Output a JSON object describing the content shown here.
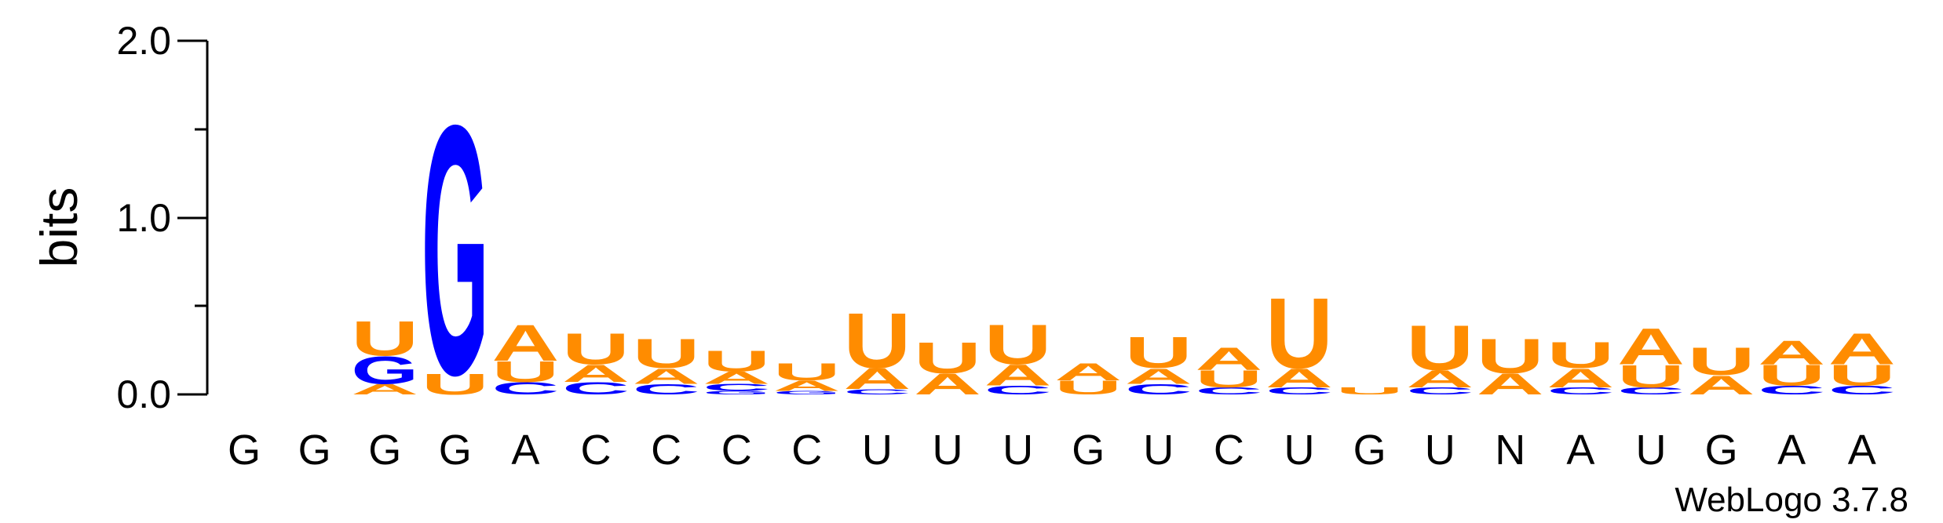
{
  "chart_data": {
    "type": "sequence-logo",
    "title": "",
    "ylabel": "bits",
    "ylim": [
      0,
      2.0
    ],
    "yticks": [
      "0.0",
      "1.0",
      "2.0"
    ],
    "colors": {
      "A": "#ff8c00",
      "U": "#ff8c00",
      "G": "#0000ff",
      "C": "#0000ff"
    },
    "positions": [
      {
        "label": "G",
        "stack": []
      },
      {
        "label": "G",
        "stack": []
      },
      {
        "label": "G",
        "stack": [
          [
            "A",
            0.06
          ],
          [
            "G",
            0.16
          ],
          [
            "U",
            0.2
          ]
        ]
      },
      {
        "label": "G",
        "stack": [
          [
            "U",
            0.12
          ],
          [
            "G",
            1.45
          ]
        ]
      },
      {
        "label": "A",
        "stack": [
          [
            "C",
            0.07
          ],
          [
            "U",
            0.12
          ],
          [
            "A",
            0.21
          ]
        ]
      },
      {
        "label": "C",
        "stack": [
          [
            "C",
            0.07
          ],
          [
            "A",
            0.1
          ],
          [
            "U",
            0.18
          ]
        ]
      },
      {
        "label": "C",
        "stack": [
          [
            "C",
            0.06
          ],
          [
            "A",
            0.09
          ],
          [
            "U",
            0.17
          ]
        ]
      },
      {
        "label": "C",
        "stack": [
          [
            "G",
            0.02
          ],
          [
            "C",
            0.04
          ],
          [
            "A",
            0.07
          ],
          [
            "U",
            0.12
          ]
        ]
      },
      {
        "label": "C",
        "stack": [
          [
            "G",
            0.02
          ],
          [
            "A",
            0.06
          ],
          [
            "U",
            0.1
          ]
        ]
      },
      {
        "label": "U",
        "stack": [
          [
            "C",
            0.03
          ],
          [
            "A",
            0.12
          ],
          [
            "U",
            0.32
          ]
        ]
      },
      {
        "label": "U",
        "stack": [
          [
            "A",
            0.12
          ],
          [
            "U",
            0.18
          ]
        ]
      },
      {
        "label": "U",
        "stack": [
          [
            "C",
            0.05
          ],
          [
            "A",
            0.12
          ],
          [
            "U",
            0.23
          ]
        ]
      },
      {
        "label": "G",
        "stack": [
          [
            "U",
            0.08
          ],
          [
            "A",
            0.1
          ]
        ]
      },
      {
        "label": "U",
        "stack": [
          [
            "C",
            0.06
          ],
          [
            "A",
            0.09
          ],
          [
            "U",
            0.18
          ]
        ]
      },
      {
        "label": "C",
        "stack": [
          [
            "C",
            0.04
          ],
          [
            "U",
            0.1
          ],
          [
            "A",
            0.13
          ]
        ]
      },
      {
        "label": "U",
        "stack": [
          [
            "C",
            0.04
          ],
          [
            "A",
            0.11
          ],
          [
            "U",
            0.41
          ]
        ]
      },
      {
        "label": "G",
        "stack": [
          [
            "U",
            0.04
          ]
        ]
      },
      {
        "label": "U",
        "stack": [
          [
            "C",
            0.04
          ],
          [
            "A",
            0.1
          ],
          [
            "U",
            0.26
          ]
        ]
      },
      {
        "label": "N",
        "stack": [
          [
            "A",
            0.12
          ],
          [
            "U",
            0.2
          ]
        ]
      },
      {
        "label": "A",
        "stack": [
          [
            "C",
            0.04
          ],
          [
            "A",
            0.11
          ],
          [
            "U",
            0.15
          ]
        ]
      },
      {
        "label": "U",
        "stack": [
          [
            "C",
            0.04
          ],
          [
            "U",
            0.13
          ],
          [
            "A",
            0.21
          ]
        ]
      },
      {
        "label": "G",
        "stack": [
          [
            "A",
            0.11
          ],
          [
            "U",
            0.16
          ]
        ]
      },
      {
        "label": "A",
        "stack": [
          [
            "C",
            0.05
          ],
          [
            "U",
            0.12
          ],
          [
            "A",
            0.14
          ]
        ]
      },
      {
        "label": "A",
        "stack": [
          [
            "C",
            0.05
          ],
          [
            "U",
            0.12
          ],
          [
            "A",
            0.18
          ]
        ]
      }
    ],
    "credit": "WebLogo 3.7.8"
  }
}
